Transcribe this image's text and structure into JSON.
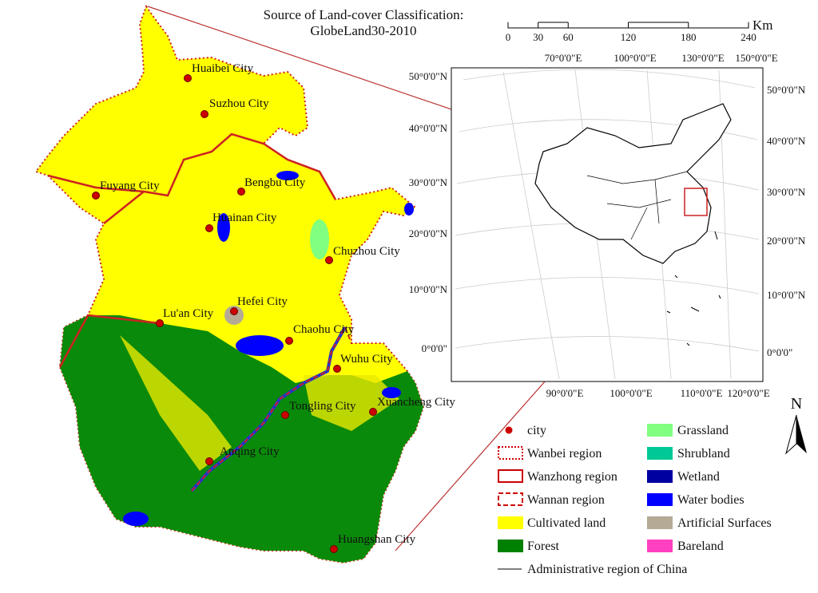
{
  "title": [
    "Source of Land-cover Classification:",
    "GlobeLand30-2010"
  ],
  "scale_bar": {
    "unit": "Km",
    "ticks": [
      0,
      30,
      60,
      120,
      180,
      240
    ]
  },
  "inset": {
    "top_labels": [
      "70°0'0\"E",
      "100°0'0\"E",
      "130°0'0\"E",
      "150°0'0\"E"
    ],
    "bottom_labels": [
      "90°0'0\"E",
      "100°0'0\"E",
      "110°0'0\"E",
      "120°0'0\"E"
    ],
    "left_labels": [
      "50°0'0\"N",
      "40°0'0\"N",
      "30°0'0\"N",
      "20°0'0\"N",
      "10°0'0\"N",
      "0°0'0\""
    ],
    "right_labels": [
      "50°0'0\"N",
      "40°0'0\"N",
      "30°0'0\"N",
      "20°0'0\"N",
      "10°0'0\"N",
      "0°0'0\""
    ]
  },
  "cities": [
    "Huaibei City",
    "Suzhou City",
    "Fuyang City",
    "Bengbu City",
    "Huainan City",
    "Chuzhou City",
    "Hefei City",
    "Lu'an City",
    "Chaohu City",
    "Wuhu City",
    "Tongling City",
    "Xuancheng City",
    "Anqing City",
    "Huangshan City"
  ],
  "north": "N",
  "legend": [
    {
      "label": "city",
      "color": "#cc0000"
    },
    {
      "label": "Wanbei region",
      "color": "#cc0000"
    },
    {
      "label": "Wanzhong region",
      "color": "#cc0000"
    },
    {
      "label": "Wannan region",
      "color": "#cc0000"
    },
    {
      "label": "Cultivated land",
      "color": "#ffff00"
    },
    {
      "label": "Forest",
      "color": "#008000"
    },
    {
      "label": "Grassland",
      "color": "#80ff80"
    },
    {
      "label": "Shrubland",
      "color": "#00c896"
    },
    {
      "label": "Wetland",
      "color": "#0000a0"
    },
    {
      "label": "Water bodies",
      "color": "#0000ff"
    },
    {
      "label": "Artificial Surfaces",
      "color": "#b4aa96"
    },
    {
      "label": "Bareland",
      "color": "#ff40c0"
    },
    {
      "label": "Administrative region of China",
      "color": "#000000"
    }
  ]
}
